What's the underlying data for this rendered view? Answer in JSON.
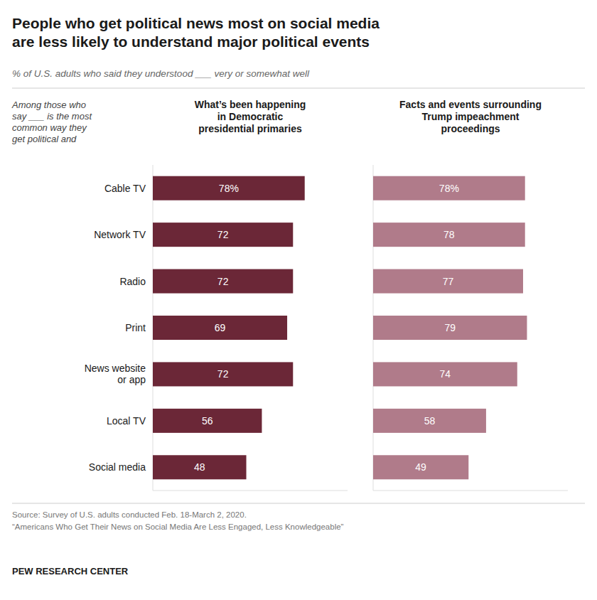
{
  "chart_data": [
    {
      "type": "bar",
      "orientation": "horizontal",
      "title": "People who get political news most on social media\nare less likely to understand major political events",
      "subtitle": "% of U.S. adults who said they understood ___ very or somewhat well",
      "annotations": [
        "Among those who\nsay ___ is the most\ncommon way they\nget political and",
        "Source: Survey of U.S. adults conducted Feb. 18-March 2, 2020.",
        "“Americans Who Get Their News on Social Media Are Less Engaged, Less Knowledgeable”",
        "PEW RESEARCH CENTER"
      ],
      "xlabel": "What’s been happening\nin Democratic\npresidential primaries",
      "categories": [
        "Cable TV",
        "Network TV",
        "Radio",
        "Print",
        "News website\nor app",
        "Local TV",
        "Social media"
      ],
      "values": [
        78,
        72,
        72,
        69,
        72,
        56,
        48
      ],
      "value_labels": [
        "78%",
        "72",
        "72",
        "69",
        "72",
        "56",
        "48"
      ],
      "color": "#6b2737",
      "xlim": [
        0,
        100
      ],
      "data_labels": true,
      "tick_labels": "y",
      "grid": false
    },
    {
      "type": "bar",
      "orientation": "horizontal",
      "xlabel": "Facts and events surrounding\nTrump impeachment\nproceedings",
      "categories": [
        "Cable TV",
        "Network TV",
        "Radio",
        "Print",
        "News website\nor app",
        "Local TV",
        "Social media"
      ],
      "values": [
        78,
        78,
        77,
        79,
        74,
        58,
        49
      ],
      "value_labels": [
        "78%",
        "78",
        "77",
        "79",
        "74",
        "58",
        "49"
      ],
      "color": "#b07b8a",
      "xlim": [
        0,
        100
      ],
      "data_labels": true,
      "tick_labels": false,
      "grid": false
    }
  ]
}
